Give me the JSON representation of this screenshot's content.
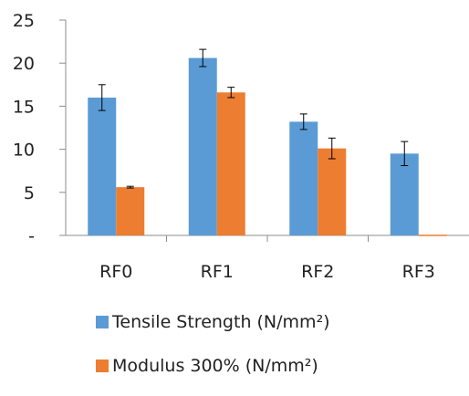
{
  "chart_data": {
    "type": "bar",
    "categories": [
      "RF0",
      "RF1",
      "RF2",
      "RF3"
    ],
    "ylim": [
      0,
      25
    ],
    "yticks": [
      {
        "value": 0,
        "label": "-"
      },
      {
        "value": 5,
        "label": "5"
      },
      {
        "value": 10,
        "label": "10"
      },
      {
        "value": 15,
        "label": "15"
      },
      {
        "value": 20,
        "label": "20"
      },
      {
        "value": 25,
        "label": "25"
      }
    ],
    "grid": false,
    "legend_position": "bottom",
    "series": [
      {
        "name": "Tensile Strength (N/mm²)",
        "color": "#5B9BD5",
        "values": [
          16.0,
          20.6,
          13.2,
          9.5
        ],
        "errors": [
          1.5,
          1.0,
          0.9,
          1.4
        ]
      },
      {
        "name": "Modulus 300% (N/mm²)",
        "color": "#ED7D31",
        "values": [
          5.6,
          16.6,
          10.1,
          0
        ],
        "errors": [
          0.1,
          0.6,
          1.2,
          0
        ]
      }
    ]
  }
}
